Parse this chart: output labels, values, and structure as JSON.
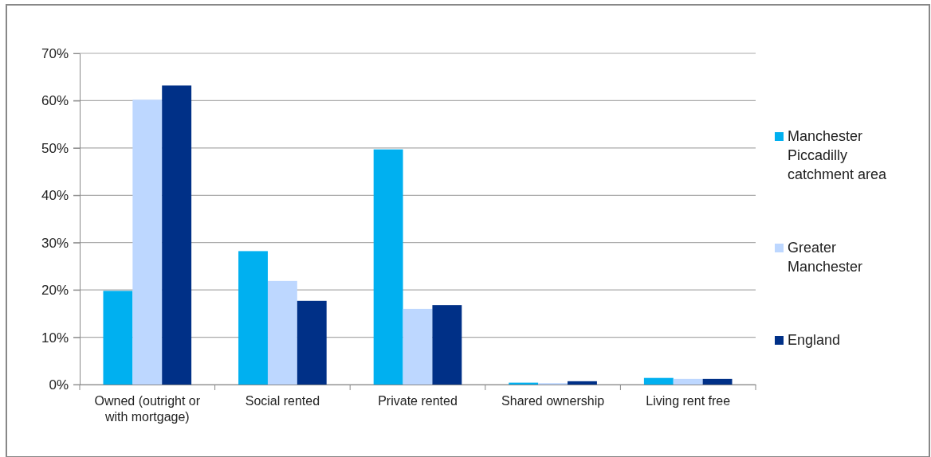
{
  "chart_data": {
    "type": "bar",
    "categories": [
      "Owned (outright or with mortgage)",
      "Social rented",
      "Private rented",
      "Shared ownership",
      "Living rent free"
    ],
    "series": [
      {
        "name": "Manchester Piccadilly catchment area",
        "color": "#00b0f0",
        "values": [
          19.8,
          28.2,
          49.7,
          0.4,
          1.4
        ]
      },
      {
        "name": "Greater Manchester",
        "color": "#bdd7ff",
        "values": [
          60.2,
          21.9,
          16.0,
          0.3,
          1.2
        ]
      },
      {
        "name": "England",
        "color": "#003087",
        "values": [
          63.2,
          17.7,
          16.8,
          0.7,
          1.2
        ]
      }
    ],
    "ylim": [
      0,
      70
    ],
    "yticks": [
      {
        "value": 0,
        "label": "0%"
      },
      {
        "value": 10,
        "label": "10%"
      },
      {
        "value": 20,
        "label": "20%"
      },
      {
        "value": 30,
        "label": "30%"
      },
      {
        "value": 40,
        "label": "40%"
      },
      {
        "value": 50,
        "label": "50%"
      },
      {
        "value": 60,
        "label": "60%"
      },
      {
        "value": 70,
        "label": "70%"
      }
    ],
    "grid": "y",
    "legend": "right"
  }
}
